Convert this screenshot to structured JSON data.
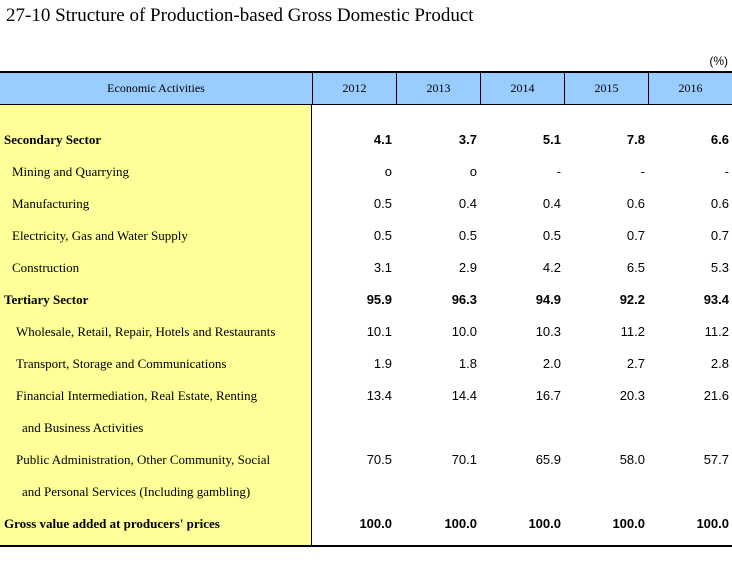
{
  "title": "27-10  Structure of Production-based Gross Domestic Product",
  "unit": "(%)",
  "table": {
    "header": {
      "activity": "Economic Activities",
      "years": [
        "2012",
        "2013",
        "2014",
        "2015",
        "2016"
      ]
    },
    "rows": [
      {
        "label": "Secondary Sector",
        "values": [
          "4.1",
          "3.7",
          "5.1",
          "7.8",
          "6.6"
        ]
      },
      {
        "label": "Mining and Quarrying",
        "values": [
          "o",
          "o",
          "-",
          "-",
          "-"
        ]
      },
      {
        "label": "Manufacturing",
        "values": [
          "0.5",
          "0.4",
          "0.4",
          "0.6",
          "0.6"
        ]
      },
      {
        "label": "Electricity, Gas and Water Supply",
        "values": [
          "0.5",
          "0.5",
          "0.5",
          "0.7",
          "0.7"
        ]
      },
      {
        "label": "Construction",
        "values": [
          "3.1",
          "2.9",
          "4.2",
          "6.5",
          "5.3"
        ]
      },
      {
        "label": "Tertiary Sector",
        "values": [
          "95.9",
          "96.3",
          "94.9",
          "92.2",
          "93.4"
        ]
      },
      {
        "label": "Wholesale, Retail, Repair, Hotels and Restaurants",
        "values": [
          "10.1",
          "10.0",
          "10.3",
          "11.2",
          "11.2"
        ]
      },
      {
        "label": "Transport, Storage and Communications",
        "values": [
          "1.9",
          "1.8",
          "2.0",
          "2.7",
          "2.8"
        ]
      },
      {
        "label": "Financial Intermediation, Real Estate, Renting",
        "values": [
          "13.4",
          "14.4",
          "16.7",
          "20.3",
          "21.6"
        ]
      },
      {
        "label": "and Business Activities",
        "values": [
          "",
          "",
          "",
          "",
          ""
        ]
      },
      {
        "label": "Public Administration, Other Community, Social",
        "values": [
          "70.5",
          "70.1",
          "65.9",
          "58.0",
          "57.7"
        ]
      },
      {
        "label": "and Personal Services (Including gambling)",
        "values": [
          "",
          "",
          "",
          "",
          ""
        ]
      },
      {
        "label": "Gross value added at producers' prices",
        "values": [
          "100.0",
          "100.0",
          "100.0",
          "100.0",
          "100.0"
        ]
      }
    ]
  }
}
